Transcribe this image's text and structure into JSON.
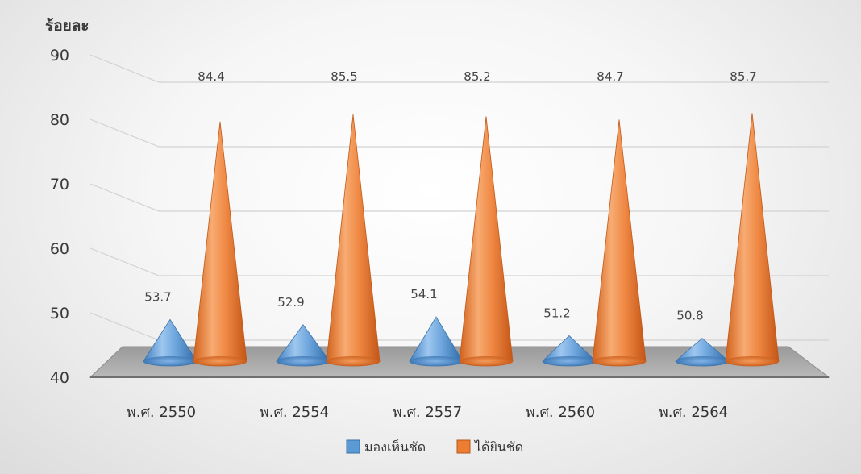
{
  "chart_data": {
    "type": "bar",
    "style": "3d-cone",
    "y_unit_label": "ร้อยละ",
    "ylim": [
      40,
      90
    ],
    "yticks": [
      40,
      50,
      60,
      70,
      80,
      90
    ],
    "categories": [
      "พ.ศ. 2550",
      "พ.ศ. 2554",
      "พ.ศ. 2557",
      "พ.ศ. 2560",
      "พ.ศ. 2564"
    ],
    "series": [
      {
        "name": "มองเห็นชัด",
        "color": "#5b9bd5",
        "values": [
          53.7,
          52.9,
          54.1,
          51.2,
          50.8
        ]
      },
      {
        "name": "ได้ยินชัด",
        "color": "#ed7d31",
        "values": [
          84.4,
          85.5,
          85.2,
          84.7,
          85.7
        ]
      }
    ],
    "legend_position": "bottom",
    "grid": true
  }
}
